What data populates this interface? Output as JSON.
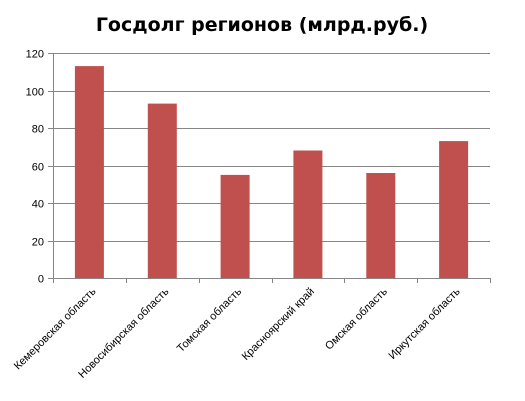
{
  "chart_data": {
    "type": "bar",
    "title": "Госдолг регионов (млрд.руб.)",
    "xlabel": "",
    "ylabel": "",
    "categories": [
      "Кемеровская область",
      "Новосибирская область",
      "Томская область",
      "Красноярский край",
      "Омская область",
      "Иркутская область"
    ],
    "values": [
      113,
      93,
      55,
      68,
      56,
      73
    ],
    "ylim": [
      0,
      120
    ],
    "yticks": [
      0,
      20,
      40,
      60,
      80,
      100,
      120
    ],
    "grid": true,
    "legend": "none",
    "bar_color": "#c0504d"
  }
}
